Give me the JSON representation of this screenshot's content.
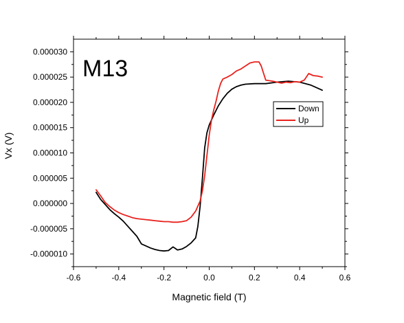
{
  "chart_data": {
    "type": "line",
    "title": "",
    "annotation": "M13",
    "xlabel": "Magnetic field (T)",
    "ylabel": "Vx (V)",
    "xlim": [
      -0.6,
      0.6
    ],
    "ylim": [
      -1.25e-05,
      3.25e-05
    ],
    "xticks": [
      -0.6,
      -0.4,
      -0.2,
      0.0,
      0.2,
      0.4,
      0.6
    ],
    "xtick_labels": [
      "-0.6",
      "-0.4",
      "-0.2",
      "0.0",
      "0.2",
      "0.4",
      "0.6"
    ],
    "yticks": [
      -1e-05,
      -5e-06,
      0,
      5e-06,
      1e-05,
      1.5e-05,
      2e-05,
      2.5e-05,
      3e-05
    ],
    "ytick_labels": [
      "-0.000010",
      "-0.000005",
      "0.000000",
      "0.000005",
      "0.000010",
      "0.000015",
      "0.000020",
      "0.000025",
      "0.000030"
    ],
    "grid": false,
    "legend": "right-middle",
    "series": [
      {
        "name": "Down",
        "color": "#000000",
        "x": [
          -0.5,
          -0.48,
          -0.46,
          -0.44,
          -0.42,
          -0.4,
          -0.38,
          -0.36,
          -0.34,
          -0.32,
          -0.3,
          -0.28,
          -0.26,
          -0.24,
          -0.22,
          -0.2,
          -0.18,
          -0.16,
          -0.14,
          -0.12,
          -0.1,
          -0.08,
          -0.06,
          -0.05,
          -0.04,
          -0.03,
          -0.02,
          -0.01,
          0.0,
          0.02,
          0.04,
          0.06,
          0.08,
          0.1,
          0.12,
          0.14,
          0.16,
          0.2,
          0.25,
          0.3,
          0.35,
          0.4,
          0.45,
          0.5
        ],
        "y": [
          2.2e-06,
          8e-07,
          -2e-07,
          -1.2e-06,
          -2e-06,
          -2.7e-06,
          -3.5e-06,
          -4.5e-06,
          -5.5e-06,
          -6.5e-06,
          -8e-06,
          -8.4e-06,
          -8.8e-06,
          -9.1e-06,
          -9.3e-06,
          -9.4e-06,
          -9.3e-06,
          -8.6e-06,
          -9.2e-06,
          -9e-06,
          -8.5e-06,
          -7.8e-06,
          -6.8e-06,
          -4.5e-06,
          -5e-07,
          5e-06,
          1.1e-05,
          1.4e-05,
          1.55e-05,
          1.75e-05,
          1.93e-05,
          2.07e-05,
          2.18e-05,
          2.26e-05,
          2.31e-05,
          2.34e-05,
          2.36e-05,
          2.37e-05,
          2.37e-05,
          2.4e-05,
          2.42e-05,
          2.4e-05,
          2.34e-05,
          2.24e-05
        ]
      },
      {
        "name": "Up",
        "color": "#e8211c",
        "x": [
          -0.5,
          -0.48,
          -0.46,
          -0.44,
          -0.42,
          -0.4,
          -0.38,
          -0.36,
          -0.34,
          -0.32,
          -0.3,
          -0.28,
          -0.26,
          -0.24,
          -0.22,
          -0.2,
          -0.18,
          -0.16,
          -0.14,
          -0.12,
          -0.1,
          -0.08,
          -0.06,
          -0.04,
          -0.03,
          -0.02,
          -0.01,
          0.0,
          0.01,
          0.02,
          0.03,
          0.04,
          0.05,
          0.06,
          0.08,
          0.1,
          0.12,
          0.14,
          0.16,
          0.18,
          0.2,
          0.22,
          0.23,
          0.25,
          0.28,
          0.3,
          0.32,
          0.34,
          0.36,
          0.38,
          0.4,
          0.42,
          0.44,
          0.46,
          0.48,
          0.5
        ],
        "y": [
          2.7e-06,
          1.5e-06,
          2e-07,
          -6e-07,
          -1.3e-06,
          -1.8e-06,
          -2.2e-06,
          -2.5e-06,
          -2.8e-06,
          -3e-06,
          -3.1e-06,
          -3.2e-06,
          -3.3e-06,
          -3.4e-06,
          -3.5e-06,
          -3.6e-06,
          -3.6e-06,
          -3.7e-06,
          -3.7e-06,
          -3.6e-06,
          -3.4e-06,
          -2.7e-06,
          -1.5e-06,
          5e-07,
          2.5e-06,
          5.5e-06,
          9.5e-06,
          1.35e-05,
          1.65e-05,
          1.85e-05,
          2.02e-05,
          2.22e-05,
          2.37e-05,
          2.46e-05,
          2.5e-05,
          2.55e-05,
          2.62e-05,
          2.66e-05,
          2.72e-05,
          2.78e-05,
          2.8e-05,
          2.8e-05,
          2.72e-05,
          2.44e-05,
          2.42e-05,
          2.4e-05,
          2.38e-05,
          2.4e-05,
          2.39e-05,
          2.41e-05,
          2.4e-05,
          2.44e-05,
          2.57e-05,
          2.53e-05,
          2.52e-05,
          2.5e-05
        ]
      }
    ]
  }
}
